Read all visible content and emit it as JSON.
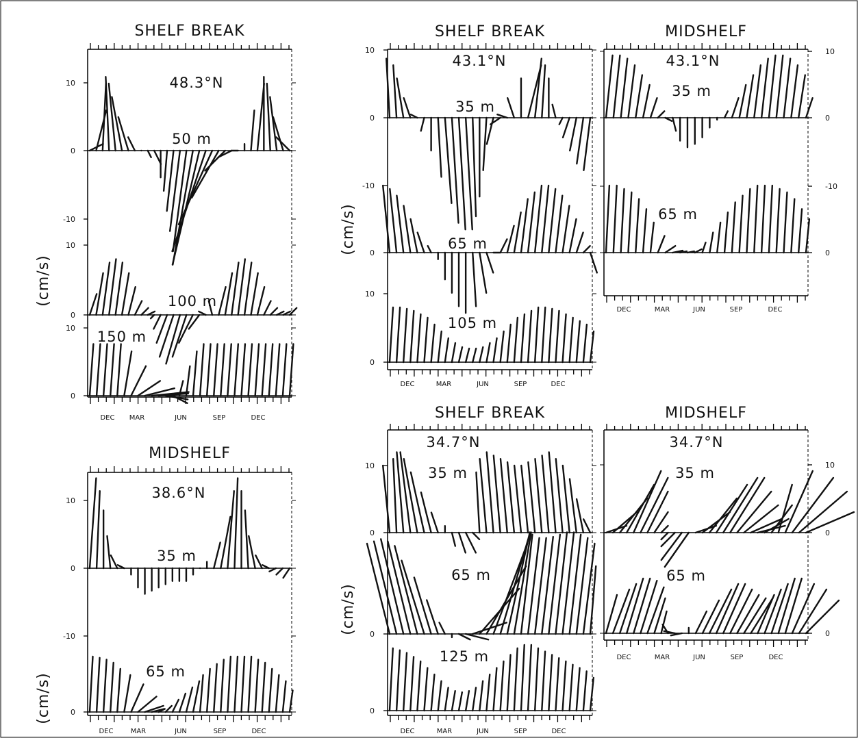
{
  "figure": {
    "frame_color": "#000000",
    "stick_color": "#111111",
    "units_label": "(cm/s)",
    "month_labels": [
      "DEC",
      "MAR",
      "JUN",
      "SEP",
      "DEC"
    ]
  },
  "chart_data": [
    {
      "type": "stick-vector",
      "panel": "A",
      "title": "SHELF BREAK",
      "latitude": "48.3°N",
      "ylabel": "(cm/s)",
      "x_tick_labels": [
        "DEC",
        "MAR",
        "JUN",
        "SEP",
        "DEC"
      ],
      "tracks": [
        {
          "depth": "50 m",
          "ytick_labels": [
            "10",
            "0",
            "-10"
          ],
          "ylim": [
            -13,
            12
          ],
          "u": [
            2,
            1.5,
            0.5,
            -0.5,
            -1,
            -1.5,
            -1.5,
            -1,
            0,
            0.5,
            1,
            0,
            -0.5,
            -1,
            -1.5,
            -2,
            -3,
            -4,
            -5,
            -5,
            -4,
            -3,
            -2,
            -1,
            0,
            0.5,
            1,
            0,
            -0.5,
            -1,
            -1.5,
            -2
          ],
          "v": [
            1,
            6,
            10,
            11,
            10,
            8,
            5,
            2,
            0,
            -1,
            -2,
            -4,
            -6,
            -9,
            -12,
            -15,
            -17,
            -17,
            -15,
            -11,
            -7,
            -3,
            -1,
            0,
            1,
            6,
            10,
            11,
            10,
            8,
            5,
            2
          ]
        },
        {
          "depth": "100 m",
          "ytick_labels": [
            "10",
            "0"
          ],
          "ylim": [
            0,
            12
          ],
          "u": [
            1,
            1,
            1,
            1,
            1,
            1,
            1,
            1,
            1,
            1,
            -0.5,
            -1,
            -1.5,
            -2,
            -2,
            -2,
            -2,
            -1.5,
            -1,
            -0.5,
            1,
            1,
            1,
            1,
            1,
            1,
            1,
            1,
            1,
            1,
            1,
            1
          ],
          "v": [
            3,
            6,
            7.5,
            8,
            7.5,
            6,
            4,
            2,
            1,
            0.5,
            -0.5,
            -2,
            -4,
            -6,
            -7,
            -6,
            -4,
            -2,
            0.5,
            2,
            4,
            6,
            7.5,
            8,
            7.5,
            6,
            4,
            2,
            1,
            0.5,
            0.5,
            1
          ]
        },
        {
          "depth": "150 m",
          "ytick_labels": [
            "10",
            "0"
          ],
          "ylim": [
            -1,
            12
          ],
          "u": [
            0.5,
            0.5,
            0.5,
            0.5,
            0.5,
            1,
            2,
            3,
            4,
            5,
            4,
            3,
            2,
            0.5,
            0.5,
            0.5,
            0.5,
            0.5,
            0.5,
            0.5,
            0.5,
            0.5,
            0.5,
            0.5,
            0.5,
            0.5,
            0.5,
            0.5,
            0.5,
            0.5
          ],
          "v": [
            7,
            7,
            7,
            7,
            7,
            6,
            4,
            2,
            1,
            0.5,
            0.3,
            -0.5,
            -1,
            2,
            4,
            6,
            7,
            7,
            7,
            7,
            7,
            7,
            7,
            7,
            7,
            7,
            7,
            7,
            7,
            7
          ]
        }
      ]
    },
    {
      "type": "stick-vector",
      "panel": "B",
      "title": "MIDSHELF",
      "latitude": "38.6°N",
      "ylabel": "(cm/s)",
      "x_tick_labels": [
        "DEC",
        "MAR",
        "JUN",
        "SEP",
        "DEC"
      ],
      "tracks": [
        {
          "depth": "35 m",
          "ytick_labels": [
            "10",
            "0",
            "-10"
          ],
          "ylim": [
            -11,
            14
          ],
          "u": [
            1,
            0.5,
            0,
            -0.5,
            -1,
            -1,
            0,
            0,
            0,
            0,
            0,
            0,
            0,
            0,
            0,
            0,
            0,
            0,
            1,
            1.5,
            1,
            0.5,
            0,
            -0.5,
            -1,
            -1,
            -1,
            -1,
            -1,
            -1
          ],
          "v": [
            14,
            12,
            9,
            5,
            2,
            0.5,
            -1,
            -3,
            -4,
            -3.5,
            -3,
            -2.5,
            -2,
            -2,
            -2,
            -1,
            0,
            1,
            4,
            8,
            12,
            14,
            12,
            9,
            5,
            2,
            0.5,
            -0.5,
            -1,
            -1.5
          ]
        },
        {
          "depth": "65 m",
          "ytick_labels": [
            "0"
          ],
          "ylim": [
            0,
            10
          ],
          "u": [
            0.5,
            0.5,
            0.5,
            0.5,
            0.5,
            1,
            2,
            3,
            3,
            2,
            1,
            1,
            1,
            1,
            1,
            1,
            0.5,
            0.5,
            0.5,
            0.5,
            0.5,
            0.5,
            0.5,
            0.5,
            0.5,
            0.5,
            0.5,
            0.5,
            0.5,
            0.5
          ],
          "v": [
            9,
            8.8,
            8.5,
            8,
            7,
            6,
            4.5,
            2.5,
            1,
            0.5,
            0.5,
            1,
            2,
            3,
            4,
            5,
            6,
            7,
            7.8,
            8.5,
            9,
            9,
            9,
            9,
            8.5,
            8,
            7,
            6,
            5,
            3.5
          ]
        }
      ]
    },
    {
      "type": "stick-vector",
      "panel": "C",
      "title": "SHELF BREAK",
      "latitude": "43.1°N",
      "ylabel": "(cm/s)",
      "x_tick_labels": [
        "DEC",
        "MAR",
        "JUN",
        "SEP",
        "DEC"
      ],
      "tracks": [
        {
          "depth": "35 m",
          "ytick_labels": [
            "10",
            "0",
            "-10"
          ],
          "ylim": [
            -17,
            11
          ],
          "u": [
            -0.5,
            -0.5,
            -1,
            -1,
            -1,
            -0.5,
            0,
            0.5,
            1,
            1,
            1,
            1,
            0.5,
            0,
            -0.5,
            -1,
            -1.5,
            -1.5,
            -1,
            0,
            2,
            1,
            0.5,
            0,
            -0.5,
            -0.5,
            -1,
            -1,
            -1,
            -1
          ],
          "v": [
            9,
            8,
            6,
            3,
            0.5,
            -2,
            -5,
            -9,
            -13,
            -16,
            -17,
            -17,
            -15,
            -12,
            -8,
            -4,
            -1,
            0.5,
            3,
            6,
            8,
            9,
            8,
            6,
            2,
            -1,
            -3,
            -5,
            -7,
            -8
          ]
        },
        {
          "depth": "65 m",
          "ytick_labels": [
            "0"
          ],
          "ylim": [
            -9,
            10
          ],
          "u": [
            -1,
            -1,
            -1,
            -1,
            -1,
            -1,
            -0.5,
            0,
            0,
            0,
            0,
            0,
            0.5,
            1,
            1,
            1,
            1,
            1,
            1,
            1,
            1,
            1,
            1,
            1,
            1,
            1,
            1,
            1,
            1,
            1
          ],
          "v": [
            10,
            9.5,
            8.5,
            7,
            5,
            3,
            1,
            -1,
            -4,
            -6,
            -8,
            -9,
            -8,
            -6,
            -3,
            0,
            2,
            4,
            6,
            8,
            9,
            10,
            10,
            9.5,
            8.5,
            7,
            5,
            3,
            1,
            -3
          ]
        },
        {
          "depth": "105 m",
          "ytick_labels": [
            "10",
            "0"
          ],
          "ylim": [
            0,
            10
          ],
          "u": [
            0.5,
            0.5,
            0.5,
            0.5,
            0.5,
            0.5,
            0.5,
            0.5,
            0.5,
            0.5,
            0.5,
            0.5,
            0.5,
            0.5,
            0.5,
            0.5,
            0.5,
            0.5,
            0.5,
            0.5,
            0.5,
            0.5,
            0.5,
            0.5,
            0.5,
            0.5,
            0.5,
            0.5,
            0.5,
            0.5
          ],
          "v": [
            8,
            8,
            7.8,
            7.5,
            7,
            6.5,
            5.5,
            4.5,
            3.5,
            2.8,
            2.2,
            2,
            2,
            2.2,
            2.8,
            3.5,
            4.5,
            5.5,
            6.5,
            7,
            7.5,
            8,
            8,
            7.8,
            7.5,
            7,
            6.5,
            6,
            5.5,
            4.5
          ]
        }
      ]
    },
    {
      "type": "stick-vector",
      "panel": "D",
      "title": "MIDSHELF",
      "latitude": "43.1°N",
      "x_tick_labels": [
        "DEC",
        "MAR",
        "JUN",
        "SEP",
        "DEC"
      ],
      "tracks": [
        {
          "depth": "35 m",
          "ytick_labels": [
            "10",
            "0",
            "-10"
          ],
          "ylim": [
            -10,
            10
          ],
          "u": [
            1,
            1,
            1,
            1,
            1,
            1,
            1,
            1,
            1,
            0.5,
            0,
            0,
            0,
            0,
            0,
            0,
            0.5,
            1,
            1,
            1,
            1,
            1,
            1,
            1,
            1,
            1,
            1,
            1
          ],
          "v": [
            9.5,
            9.5,
            9,
            8,
            6.5,
            5,
            3,
            1,
            -0.5,
            -2,
            -3.5,
            -4.5,
            -4,
            -3,
            -1.5,
            -0.3,
            1,
            3,
            5,
            6.5,
            8,
            9,
            9.5,
            9.5,
            9,
            8,
            6.5,
            3
          ]
        },
        {
          "depth": "65 m",
          "ytick_labels": [
            "0"
          ],
          "ylim": [
            -5,
            10
          ],
          "u": [
            0.5,
            0.5,
            0.5,
            0.5,
            0.5,
            0.5,
            0.5,
            1,
            1.5,
            1.5,
            1,
            1,
            1,
            0.5,
            0.5,
            0.5,
            0.5,
            0.5,
            0.5,
            0.5,
            0.5,
            0.5,
            0.5,
            0.5,
            0.5,
            0.5,
            0.5,
            0.5
          ],
          "v": [
            10,
            10,
            9.5,
            9,
            8,
            6.5,
            4.5,
            2.5,
            1,
            0.3,
            0.2,
            0.2,
            0.5,
            1.5,
            3,
            4.5,
            6,
            7.5,
            8.5,
            9.5,
            10,
            10,
            10,
            9.5,
            9,
            8,
            6.5,
            5
          ]
        }
      ]
    },
    {
      "type": "stick-vector",
      "panel": "E",
      "title": "SHELF BREAK",
      "latitude": "34.7°N",
      "ylabel": "(cm/s)",
      "x_tick_labels": [
        "DEC",
        "MAR",
        "JUN",
        "SEP",
        "DEC"
      ],
      "tracks": [
        {
          "depth": "35 m",
          "ytick_labels": [
            "10",
            "0"
          ],
          "ylim": [
            -3,
            13
          ],
          "u": [
            -1,
            -0.5,
            -1,
            -1.5,
            -2,
            -2,
            -1.5,
            -1,
            0,
            0.5,
            1,
            1.5,
            1,
            -0.5,
            -1,
            -1,
            -1,
            -1,
            -1,
            -1,
            -1,
            -1,
            -1,
            -1,
            -1,
            -1,
            -1,
            -1,
            -1,
            -1
          ],
          "v": [
            10,
            11,
            12,
            12,
            11,
            9,
            6,
            3,
            1,
            -2,
            -3,
            -3,
            -1,
            9,
            11,
            12,
            11.5,
            11,
            10.5,
            10,
            10,
            10.5,
            11,
            11.5,
            12,
            11,
            10,
            8,
            5,
            2
          ]
        },
        {
          "depth": "65 m",
          "ytick_labels": [
            "0"
          ],
          "ylim": [
            0,
            9
          ],
          "u": [
            -2,
            -2,
            -2,
            -2,
            -2,
            -2,
            -1.5,
            -1,
            -0.5,
            0,
            1,
            2,
            3,
            3.5,
            3.5,
            3,
            2.5,
            2,
            1.5,
            1,
            1,
            1,
            1,
            1,
            1,
            1,
            1,
            1,
            1,
            0.5
          ],
          "v": [
            8,
            8.2,
            8.4,
            8.2,
            7.8,
            6.5,
            5,
            3,
            1,
            -0.3,
            -0.5,
            -0.5,
            1,
            4,
            6,
            8,
            8.5,
            9,
            9,
            8.8,
            8.5,
            8.5,
            8.6,
            8.8,
            9,
            9,
            8.8,
            8.5,
            8,
            6
          ]
        },
        {
          "depth": "125 m",
          "ytick_labels": [
            "0"
          ],
          "ylim": [
            0,
            11
          ],
          "u": [
            0.5,
            0.5,
            0.5,
            0.5,
            0.5,
            0.5,
            0.5,
            0.5,
            0.5,
            0.5,
            0.5,
            0.5,
            0.5,
            0.5,
            0.5,
            0.5,
            0.5,
            0.5,
            0.5,
            0.5,
            0.5,
            0.5,
            0.5,
            0.5,
            0.5,
            0.5,
            0.5,
            0.5,
            0.5,
            0.5
          ],
          "v": [
            9.5,
            9.2,
            8.8,
            8.2,
            7.5,
            6.5,
            5.5,
            4.5,
            3.5,
            3,
            2.8,
            3,
            3.5,
            4.5,
            5.5,
            6.5,
            7.5,
            8.5,
            9.5,
            10,
            10,
            9.5,
            9,
            8.5,
            8,
            7.5,
            7,
            6.5,
            6,
            5
          ]
        }
      ]
    },
    {
      "type": "stick-vector",
      "panel": "F",
      "title": "MIDSHELF",
      "latitude": "34.7°N",
      "x_tick_labels": [
        "DEC",
        "MAR",
        "JUN",
        "SEP",
        "DEC"
      ],
      "tracks": [
        {
          "depth": "35 m",
          "ytick_labels": [
            "10",
            "0"
          ],
          "ylim": [
            -4,
            11
          ],
          "u": [
            3,
            3.5,
            4,
            4,
            4,
            4,
            3,
            2,
            1,
            -1,
            -2,
            -3,
            -3.5,
            3,
            4,
            4,
            4.5,
            5,
            5,
            5,
            5,
            4.5,
            4,
            3.5,
            3,
            2,
            4,
            6,
            7,
            7
          ],
          "v": [
            1,
            3,
            5,
            7,
            9,
            8,
            6,
            3,
            1,
            -1,
            -2,
            -4,
            -5,
            1,
            3,
            5,
            7,
            8,
            8,
            6,
            4,
            2,
            1,
            2,
            4,
            7,
            9,
            8,
            6,
            3
          ]
        },
        {
          "depth": "65 m",
          "ytick_labels": [
            "0"
          ],
          "ylim": [
            0,
            8
          ],
          "u": [
            1,
            1.5,
            1.5,
            1.5,
            1.5,
            1.5,
            1.5,
            1,
            0.5,
            -0.5,
            -1,
            -1,
            0,
            1,
            1.5,
            2,
            2,
            2,
            2,
            2,
            2,
            2,
            1.5,
            1.5,
            1.5,
            1.5,
            1.5,
            2,
            2.5,
            3
          ],
          "v": [
            3.5,
            4,
            4.5,
            5,
            5,
            4.8,
            4.2,
            3.2,
            2,
            0.8,
            0.2,
            -0.2,
            0.5,
            2,
            3,
            4,
            4.5,
            4.5,
            4,
            3.5,
            3.2,
            3.2,
            3.5,
            4,
            4.5,
            5,
            5,
            4.5,
            4,
            3
          ]
        }
      ]
    }
  ]
}
